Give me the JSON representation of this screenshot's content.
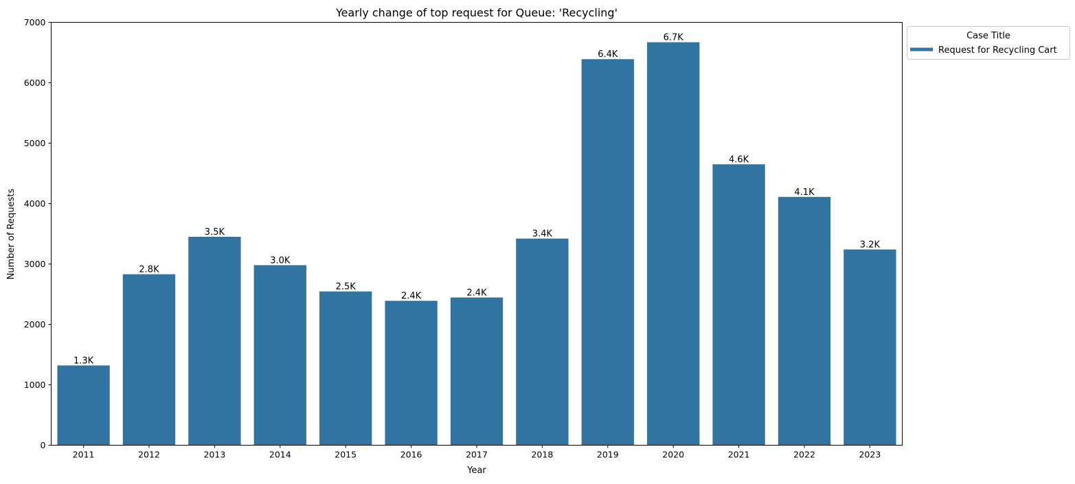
{
  "chart_data": {
    "type": "bar",
    "title": "Yearly change of top request for Queue: 'Recycling'",
    "xlabel": "Year",
    "ylabel": "Number of Requests",
    "categories": [
      "2011",
      "2012",
      "2013",
      "2014",
      "2015",
      "2016",
      "2017",
      "2018",
      "2019",
      "2020",
      "2021",
      "2022",
      "2023"
    ],
    "series": [
      {
        "name": "Request for Recycling Cart",
        "values": [
          1320,
          2830,
          3450,
          2980,
          2545,
          2390,
          2445,
          3420,
          6390,
          6670,
          4650,
          4110,
          3240
        ],
        "data_labels": [
          "1.3K",
          "2.8K",
          "3.5K",
          "3.0K",
          "2.5K",
          "2.4K",
          "2.4K",
          "3.4K",
          "6.4K",
          "6.7K",
          "4.6K",
          "4.1K",
          "3.2K"
        ],
        "color": "#3274a1"
      }
    ],
    "ylim": [
      0,
      7000
    ],
    "yticks": [
      0,
      1000,
      2000,
      3000,
      4000,
      5000,
      6000,
      7000
    ],
    "grid": false,
    "legend": {
      "title": "Case Title",
      "placement": "outside-top-right"
    }
  }
}
